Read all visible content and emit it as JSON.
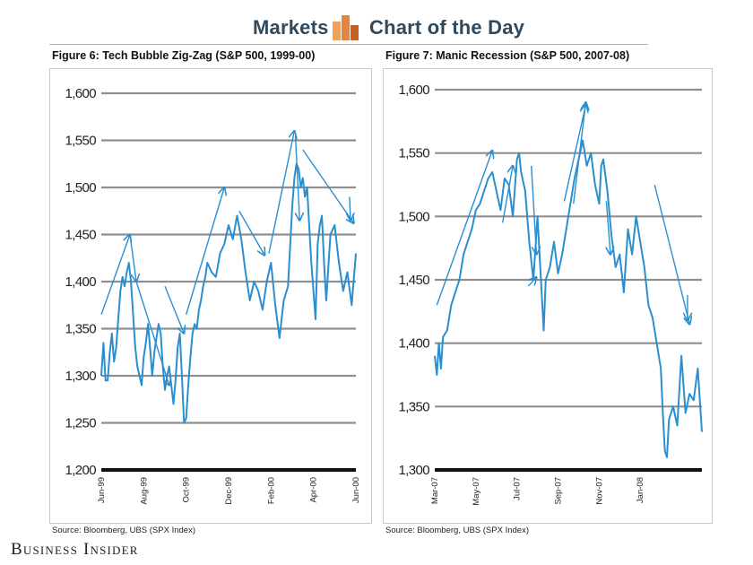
{
  "header": {
    "left_label": "Markets",
    "right_label": "Chart of the Day",
    "logo_icon": "bar-chart-icon",
    "accent_color": "#e8833a"
  },
  "brand": {
    "name": "Business Insider"
  },
  "chart_data": [
    {
      "type": "line",
      "title": "Figure 6: Tech Bubble Zig-Zag (S&P 500, 1999-00)",
      "source": "Source:  Bloomberg, UBS (SPX Index)",
      "xlabel": "",
      "ylabel": "",
      "ylim": [
        1200,
        1600
      ],
      "yticks": [
        1600,
        1550,
        1500,
        1450,
        1400,
        1350,
        1300,
        1250,
        1200
      ],
      "ytick_labels": [
        "1,600",
        "1,550",
        "1,500",
        "1,450",
        "1,400",
        "1,350",
        "1,300",
        "1,250",
        "1,200"
      ],
      "x_range": [
        0,
        12
      ],
      "xticks": [
        0,
        2,
        4,
        6,
        8,
        10,
        12
      ],
      "xtick_labels": [
        "Jun-99",
        "Aug-99",
        "Oct-99",
        "Dec-99",
        "Feb-00",
        "Apr-00",
        "Jun-00"
      ],
      "line_color": "#2a8fd0",
      "series": [
        {
          "name": "S&P 500",
          "x": [
            0.0,
            0.1,
            0.2,
            0.3,
            0.4,
            0.5,
            0.6,
            0.7,
            0.8,
            0.9,
            1.0,
            1.1,
            1.2,
            1.3,
            1.4,
            1.5,
            1.6,
            1.7,
            1.8,
            1.9,
            2.0,
            2.1,
            2.2,
            2.3,
            2.4,
            2.5,
            2.6,
            2.7,
            2.8,
            2.9,
            3.0,
            3.1,
            3.2,
            3.3,
            3.4,
            3.5,
            3.6,
            3.7,
            3.8,
            3.9,
            4.0,
            4.1,
            4.2,
            4.3,
            4.4,
            4.5,
            4.6,
            4.7,
            4.8,
            4.9,
            5.0,
            5.2,
            5.4,
            5.6,
            5.8,
            6.0,
            6.2,
            6.4,
            6.6,
            6.8,
            7.0,
            7.2,
            7.4,
            7.6,
            7.8,
            8.0,
            8.2,
            8.4,
            8.6,
            8.8,
            9.0,
            9.1,
            9.2,
            9.3,
            9.4,
            9.5,
            9.6,
            9.7,
            9.8,
            9.9,
            10.0,
            10.1,
            10.2,
            10.3,
            10.4,
            10.5,
            10.6,
            10.8,
            11.0,
            11.2,
            11.4,
            11.6,
            11.8,
            12.0
          ],
          "values": [
            1300,
            1335,
            1295,
            1295,
            1325,
            1345,
            1315,
            1330,
            1360,
            1390,
            1405,
            1395,
            1410,
            1420,
            1400,
            1365,
            1330,
            1310,
            1300,
            1290,
            1320,
            1335,
            1355,
            1330,
            1300,
            1325,
            1340,
            1355,
            1345,
            1310,
            1285,
            1300,
            1310,
            1290,
            1270,
            1295,
            1330,
            1345,
            1300,
            1250,
            1255,
            1290,
            1320,
            1345,
            1355,
            1350,
            1370,
            1380,
            1395,
            1405,
            1420,
            1410,
            1405,
            1430,
            1440,
            1460,
            1445,
            1470,
            1445,
            1410,
            1380,
            1400,
            1390,
            1370,
            1400,
            1420,
            1375,
            1340,
            1380,
            1395,
            1480,
            1510,
            1525,
            1520,
            1500,
            1510,
            1490,
            1500,
            1460,
            1420,
            1390,
            1360,
            1440,
            1460,
            1470,
            1420,
            1380,
            1450,
            1460,
            1420,
            1390,
            1410,
            1375,
            1430
          ]
        }
      ],
      "annotations": "blue zig-zag arrows tracing peaks and troughs"
    },
    {
      "type": "line",
      "title": "Figure 7: Manic Recession (S&P 500, 2007-08)",
      "source": "Source:  Bloomberg, UBS (SPX Index)",
      "xlabel": "",
      "ylabel": "",
      "ylim": [
        1300,
        1600
      ],
      "yticks": [
        1600,
        1550,
        1500,
        1450,
        1400,
        1350,
        1300
      ],
      "ytick_labels": [
        "1,600",
        "1,550",
        "1,500",
        "1,450",
        "1,400",
        "1,350",
        "1,300"
      ],
      "x_range": [
        0,
        13
      ],
      "xticks": [
        0,
        2,
        4,
        6,
        8,
        10
      ],
      "xtick_labels": [
        "Mar-07",
        "May-07",
        "Jul-07",
        "Sep-07",
        "Nov-07",
        "Jan-08"
      ],
      "line_color": "#2a8fd0",
      "series": [
        {
          "name": "S&P 500",
          "x": [
            0.0,
            0.1,
            0.2,
            0.3,
            0.4,
            0.6,
            0.8,
            1.0,
            1.2,
            1.4,
            1.6,
            1.8,
            2.0,
            2.2,
            2.4,
            2.6,
            2.8,
            3.0,
            3.2,
            3.4,
            3.6,
            3.8,
            4.0,
            4.1,
            4.2,
            4.4,
            4.6,
            4.8,
            5.0,
            5.1,
            5.2,
            5.3,
            5.4,
            5.6,
            5.8,
            6.0,
            6.2,
            6.4,
            6.6,
            6.8,
            7.0,
            7.2,
            7.4,
            7.6,
            7.8,
            8.0,
            8.1,
            8.2,
            8.4,
            8.6,
            8.8,
            9.0,
            9.2,
            9.4,
            9.6,
            9.8,
            10.0,
            10.2,
            10.4,
            10.6,
            10.8,
            11.0,
            11.1,
            11.2,
            11.3,
            11.4,
            11.6,
            11.8,
            12.0,
            12.2,
            12.4,
            12.6,
            12.8,
            13.0
          ],
          "values": [
            1390,
            1375,
            1400,
            1380,
            1405,
            1410,
            1430,
            1440,
            1450,
            1470,
            1480,
            1490,
            1505,
            1510,
            1520,
            1530,
            1535,
            1520,
            1505,
            1530,
            1525,
            1500,
            1545,
            1550,
            1535,
            1520,
            1480,
            1450,
            1500,
            1470,
            1440,
            1410,
            1450,
            1460,
            1480,
            1455,
            1470,
            1490,
            1510,
            1530,
            1545,
            1560,
            1540,
            1550,
            1525,
            1510,
            1540,
            1545,
            1520,
            1485,
            1460,
            1470,
            1440,
            1490,
            1470,
            1500,
            1480,
            1460,
            1430,
            1420,
            1400,
            1380,
            1345,
            1315,
            1310,
            1340,
            1350,
            1335,
            1390,
            1345,
            1360,
            1355,
            1380,
            1330
          ]
        }
      ],
      "annotations": "blue zig-zag arrows tracing peaks and troughs"
    }
  ]
}
